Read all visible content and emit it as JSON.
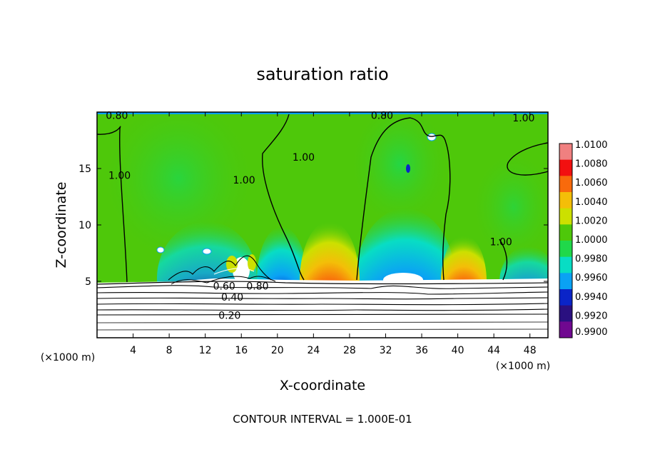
{
  "chart_data": {
    "type": "heatmap",
    "title": "saturation ratio",
    "xlabel": "X-coordinate",
    "ylabel": "Z-coordinate",
    "x_unit_left": "(×1000 m)",
    "x_unit_right": "(×1000 m)",
    "footer": "CONTOUR INTERVAL = 1.000E-01",
    "xlim": [
      0,
      50
    ],
    "ylim": [
      0,
      20
    ],
    "x_ticks": [
      4,
      8,
      12,
      16,
      20,
      24,
      28,
      32,
      36,
      40,
      44,
      48
    ],
    "y_ticks": [
      5,
      10,
      15
    ],
    "colorbar": {
      "levels": [
        "1.0100",
        "1.0080",
        "1.0060",
        "1.0040",
        "1.0020",
        "1.0000",
        "0.9980",
        "0.9960",
        "0.9940",
        "0.9920",
        "0.9900"
      ],
      "colors": [
        "#f08080",
        "#f21010",
        "#f86a0c",
        "#f4be08",
        "#cce000",
        "#4ec80a",
        "#20d84a",
        "#08ddc4",
        "#0aa2f4",
        "#0a24c8",
        "#2a1080",
        "#700890"
      ]
    },
    "contour_labels": [
      {
        "text": "0.80",
        "x": 2.2,
        "y": 19.7
      },
      {
        "text": "0.80",
        "x": 31.6,
        "y": 19.7
      },
      {
        "text": "1.00",
        "x": 47.3,
        "y": 19.5
      },
      {
        "text": "1.00",
        "x": 2.5,
        "y": 14.4
      },
      {
        "text": "1.00",
        "x": 16.3,
        "y": 14.0
      },
      {
        "text": "1.00",
        "x": 22.9,
        "y": 16.0
      },
      {
        "text": "1.00",
        "x": 44.8,
        "y": 8.5
      },
      {
        "text": "0.60",
        "x": 14.1,
        "y": 4.6
      },
      {
        "text": "0.80",
        "x": 17.8,
        "y": 4.6
      },
      {
        "text": "0.40",
        "x": 15.0,
        "y": 3.6
      },
      {
        "text": "0.20",
        "x": 14.7,
        "y": 2.0
      }
    ]
  }
}
